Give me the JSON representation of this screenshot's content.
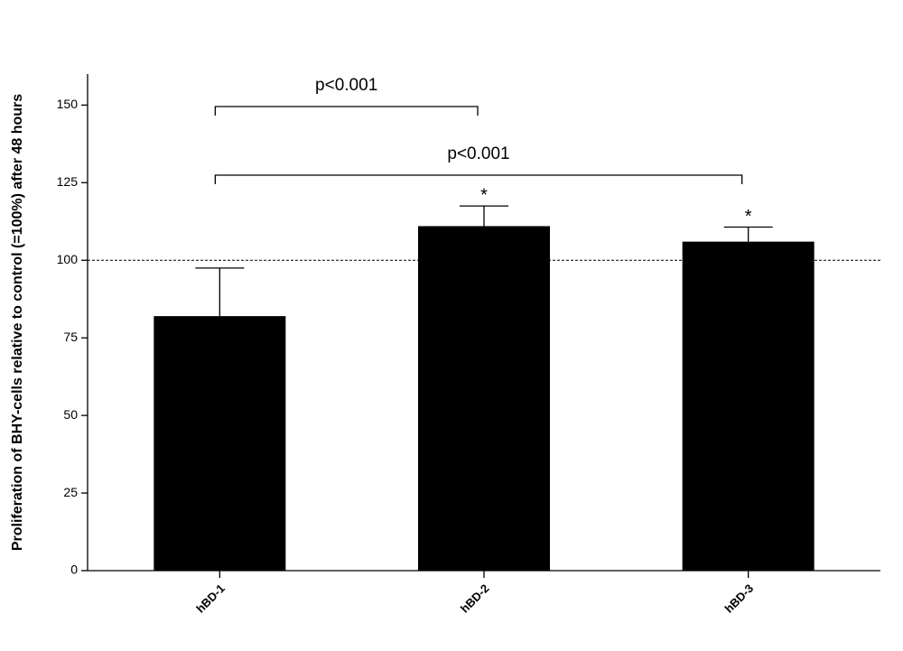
{
  "chart_data": {
    "type": "bar",
    "y_label": "Proliferation of BHY-cells relative to control (=100%) after 48 hours",
    "categories": [
      "hBD-1",
      "hBD-2",
      "hBD-3"
    ],
    "values": [
      82,
      111,
      106
    ],
    "errors": [
      15.5,
      6.5,
      4.7
    ],
    "value_annotations": [
      null,
      "*",
      "*"
    ],
    "annotations": [
      "p<0.001",
      "p<0.001"
    ],
    "reference_line": 100,
    "color": "#000000",
    "ylim": [
      0,
      160
    ],
    "yticks": [
      0,
      25,
      50,
      75,
      100,
      125,
      150
    ]
  }
}
